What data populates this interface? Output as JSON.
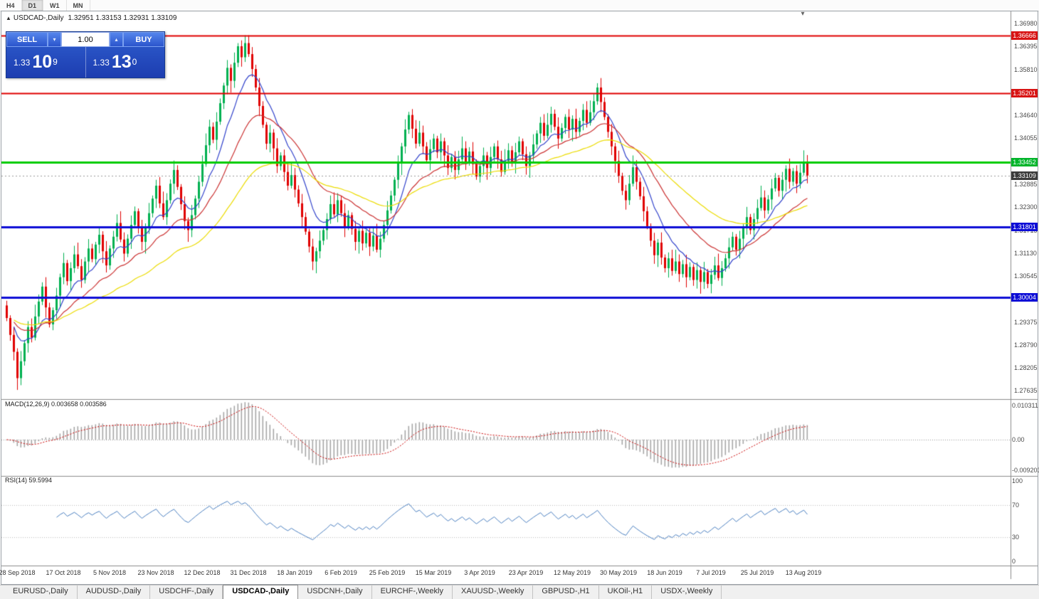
{
  "toolbar": {
    "timeframes": [
      {
        "label": "H4",
        "active": false
      },
      {
        "label": "D1",
        "active": true
      },
      {
        "label": "W1",
        "active": false
      },
      {
        "label": "MN",
        "active": false
      }
    ]
  },
  "header": {
    "symbol": "USDCAD-,Daily",
    "ohlc": "1.32951 1.33153 1.32931 1.33109"
  },
  "order": {
    "sell_label": "SELL",
    "buy_label": "BUY",
    "volume": "1.00",
    "sell": {
      "prefix": "1.33",
      "big": "10",
      "sup": "9"
    },
    "buy": {
      "prefix": "1.33",
      "big": "13",
      "sup": "0"
    }
  },
  "price_axis": {
    "scale_labels": [
      "1.36980",
      "1.36395",
      "1.35810",
      "1.35225",
      "1.34640",
      "1.34055",
      "1.33470",
      "1.32885",
      "1.32300",
      "1.31715",
      "1.31130",
      "1.30545",
      "1.29960",
      "1.29375",
      "1.28790",
      "1.28205",
      "1.27635"
    ],
    "tags": [
      {
        "text": "1.36666",
        "value": 1.36666,
        "color": "#d81414"
      },
      {
        "text": "1.35201",
        "value": 1.35201,
        "color": "#d81414"
      },
      {
        "text": "1.33452",
        "value": 1.33452,
        "color": "#00b42a"
      },
      {
        "text": "1.31801",
        "value": 1.31801,
        "color": "#0d0dd6"
      },
      {
        "text": "1.30004",
        "value": 1.30004,
        "color": "#0d0dd6"
      }
    ],
    "current_tag": {
      "text": "1.33109",
      "value": 1.33109,
      "color": "#3c3c3c"
    }
  },
  "indicators": {
    "macd": {
      "name": "MACD(12,26,9)",
      "main_value": "0.003658",
      "signal_value": "0.003586",
      "axis": [
        "0.010311",
        "0.00",
        "-0.009203"
      ]
    },
    "rsi": {
      "name": "RSI(14)",
      "value": "59.5994",
      "axis": [
        "100",
        "70",
        "30",
        "0"
      ],
      "levels": [
        70,
        30
      ]
    }
  },
  "time_axis": {
    "labels": [
      {
        "text": "28 Sep 2018",
        "i": 3
      },
      {
        "text": "17 Oct 2018",
        "i": 16
      },
      {
        "text": "5 Nov 2018",
        "i": 29
      },
      {
        "text": "23 Nov 2018",
        "i": 42
      },
      {
        "text": "12 Dec 2018",
        "i": 55
      },
      {
        "text": "31 Dec 2018",
        "i": 68
      },
      {
        "text": "18 Jan 2019",
        "i": 81
      },
      {
        "text": "6 Feb 2019",
        "i": 94
      },
      {
        "text": "25 Feb 2019",
        "i": 107
      },
      {
        "text": "15 Mar 2019",
        "i": 120
      },
      {
        "text": "3 Apr 2019",
        "i": 133
      },
      {
        "text": "23 Apr 2019",
        "i": 146
      },
      {
        "text": "12 May 2019",
        "i": 159
      },
      {
        "text": "30 May 2019",
        "i": 172
      },
      {
        "text": "18 Jun 2019",
        "i": 185
      },
      {
        "text": "7 Jul 2019",
        "i": 198
      },
      {
        "text": "25 Jul 2019",
        "i": 211
      },
      {
        "text": "13 Aug 2019",
        "i": 224
      }
    ]
  },
  "tabs": {
    "items": [
      {
        "label": "EURUSD-,Daily",
        "active": false
      },
      {
        "label": "AUDUSD-,Daily",
        "active": false
      },
      {
        "label": "USDCHF-,Daily",
        "active": false
      },
      {
        "label": "USDCAD-,Daily",
        "active": true
      },
      {
        "label": "USDCNH-,Daily",
        "active": false
      },
      {
        "label": "EURCHF-,Weekly",
        "active": false
      },
      {
        "label": "XAUUSD-,Weekly",
        "active": false
      },
      {
        "label": "GBPUSD-,H1",
        "active": false
      },
      {
        "label": "UKOil-,H1",
        "active": false
      },
      {
        "label": "USDX-,Weekly",
        "active": false
      }
    ]
  },
  "chart_data": {
    "type": "candlestick",
    "symbol": "USDCAD",
    "timeframe": "Daily",
    "ylim": [
      1.27416,
      1.37288
    ],
    "first_open": 1.298,
    "closes": [
      1.2948,
      1.2905,
      1.2862,
      1.2795,
      1.2838,
      1.2884,
      1.2925,
      1.2898,
      1.2952,
      1.299,
      1.3028,
      1.2975,
      1.2932,
      1.2968,
      1.3005,
      1.3052,
      1.3088,
      1.3042,
      1.3075,
      1.311,
      1.308,
      1.3045,
      1.3092,
      1.3125,
      1.3098,
      1.3135,
      1.316,
      1.3118,
      1.3082,
      1.3125,
      1.3155,
      1.319,
      1.3148,
      1.3112,
      1.315,
      1.3185,
      1.322,
      1.3178,
      1.3142,
      1.318,
      1.3215,
      1.3252,
      1.3285,
      1.324,
      1.3205,
      1.3248,
      1.329,
      1.3325,
      1.3282,
      1.3238,
      1.3195,
      1.3172,
      1.321,
      1.3252,
      1.3295,
      1.334,
      1.3388,
      1.3435,
      1.3402,
      1.3448,
      1.3495,
      1.354,
      1.3585,
      1.3552,
      1.3598,
      1.364,
      1.3612,
      1.3648,
      1.362,
      1.3582,
      1.3535,
      1.3488,
      1.344,
      1.3392,
      1.342,
      1.338,
      1.3335,
      1.3362,
      1.332,
      1.3285,
      1.3312,
      1.3275,
      1.324,
      1.3205,
      1.3168,
      1.313,
      1.3092,
      1.3118,
      1.3145,
      1.3172,
      1.32,
      1.3238,
      1.3212,
      1.3248,
      1.3215,
      1.318,
      1.321,
      1.3175,
      1.3142,
      1.317,
      1.3138,
      1.3165,
      1.313,
      1.3158,
      1.3122,
      1.315,
      1.3185,
      1.3222,
      1.326,
      1.33,
      1.3342,
      1.3385,
      1.3428,
      1.3465,
      1.343,
      1.3392,
      1.342,
      1.3385,
      1.335,
      1.3378,
      1.3405,
      1.337,
      1.3398,
      1.3362,
      1.333,
      1.3358,
      1.3325,
      1.3352,
      1.338,
      1.3345,
      1.3372,
      1.334,
      1.3308,
      1.3335,
      1.3362,
      1.333,
      1.3358,
      1.3385,
      1.3352,
      1.332,
      1.3348,
      1.3375,
      1.3342,
      1.337,
      1.3398,
      1.3365,
      1.3335,
      1.3362,
      1.339,
      1.3418,
      1.3445,
      1.3412,
      1.344,
      1.3468,
      1.3435,
      1.3405,
      1.3432,
      1.346,
      1.3428,
      1.3455,
      1.3422,
      1.345,
      1.3478,
      1.3445,
      1.3472,
      1.35,
      1.3535,
      1.3498,
      1.346,
      1.3422,
      1.3385,
      1.3348,
      1.331,
      1.3272,
      1.3248,
      1.329,
      1.3332,
      1.3295,
      1.3258,
      1.322,
      1.3182,
      1.3145,
      1.3108,
      1.314,
      1.3102,
      1.3075,
      1.31,
      1.3068,
      1.3092,
      1.306,
      1.3085,
      1.3052,
      1.3078,
      1.3045,
      1.307,
      1.304,
      1.3065,
      1.3035,
      1.3058,
      1.3082,
      1.305,
      1.3075,
      1.31,
      1.3128,
      1.3155,
      1.3122,
      1.315,
      1.3178,
      1.3205,
      1.3172,
      1.32,
      1.3228,
      1.3255,
      1.3222,
      1.325,
      1.3278,
      1.3305,
      1.3272,
      1.33,
      1.3328,
      1.3295,
      1.3322,
      1.329,
      1.3318,
      1.3345,
      1.33109
    ],
    "wick_cycle_pips": [
      12,
      7,
      20,
      9,
      26,
      8,
      15,
      22,
      30,
      18,
      11,
      24
    ],
    "high_cap": 1.3668,
    "colors": {
      "up": "#00b050",
      "down": "#e00000",
      "macd_hist": "#a8a8a8",
      "macd_signal": "#cc0000",
      "rsi_line": "#4a7fc1",
      "current_line": "#9a9a9a"
    },
    "hlines": [
      {
        "price": 1.36666,
        "color": "#e00000",
        "width": 2
      },
      {
        "price": 1.35201,
        "color": "#e00000",
        "width": 2
      },
      {
        "price": 1.33452,
        "color": "#00cc00",
        "width": 3
      },
      {
        "price": 1.31801,
        "color": "#0d0dd6",
        "width": 3
      },
      {
        "price": 1.30004,
        "color": "#0d0dd6",
        "width": 3
      }
    ],
    "current_price": 1.33109,
    "ma_overlays": [
      {
        "period": 10,
        "color": "#3344cc"
      },
      {
        "period": 24,
        "color": "#cc3333"
      },
      {
        "period": 52,
        "color": "#ecdc00"
      }
    ],
    "macd_params": [
      12,
      26,
      9
    ],
    "macd_range": [
      -0.009203,
      0.010311
    ],
    "rsi_period": 14
  }
}
